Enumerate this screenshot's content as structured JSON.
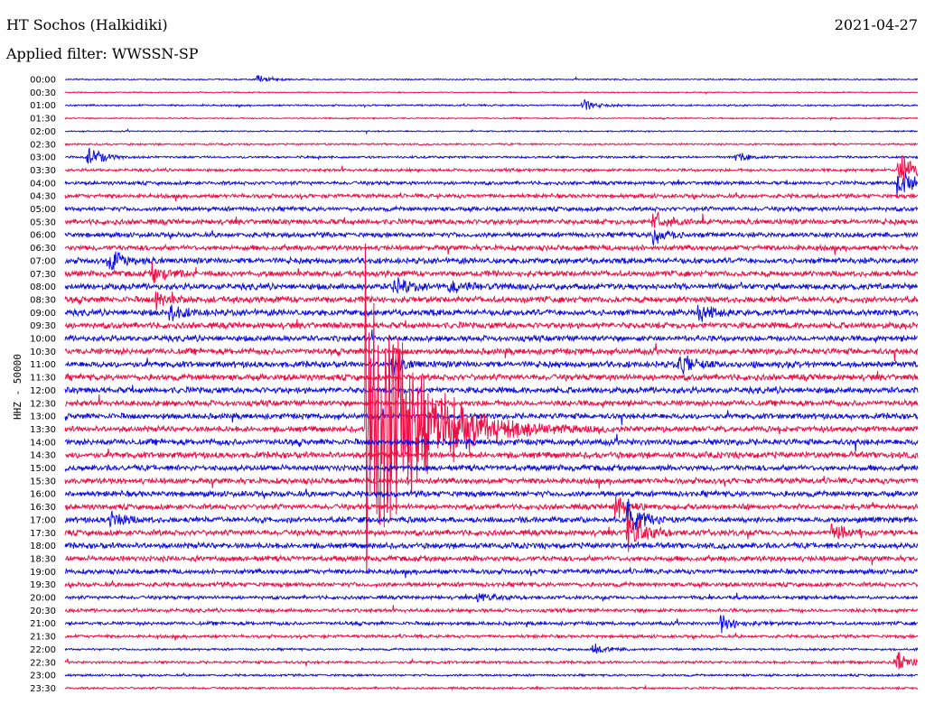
{
  "header": {
    "station": "HT Sochos (Halkidiki)",
    "date": "2021-04-27",
    "filter": "Applied filter: WWSSN-SP"
  },
  "channel_label": "HHZ - 50000",
  "colors": {
    "blue": "#1010e0",
    "red": "#ee1045",
    "background": "#ffffff"
  },
  "chart_data": {
    "type": "line",
    "title": "HT Sochos (Halkidiki)",
    "ylabel": "HHZ - 50000",
    "xlabel": "",
    "grid": false,
    "rows": [
      "00:00",
      "00:30",
      "01:00",
      "01:30",
      "02:00",
      "02:30",
      "03:00",
      "03:30",
      "04:00",
      "04:30",
      "05:00",
      "05:30",
      "06:00",
      "06:30",
      "07:00",
      "07:30",
      "08:00",
      "08:30",
      "09:00",
      "09:30",
      "10:00",
      "10:30",
      "11:00",
      "11:30",
      "12:00",
      "12:30",
      "13:00",
      "13:30",
      "14:00",
      "14:30",
      "15:00",
      "15:30",
      "16:00",
      "16:30",
      "17:00",
      "17:30",
      "18:00",
      "18:30",
      "19:00",
      "19:30",
      "20:00",
      "20:30",
      "21:00",
      "21:30",
      "22:00",
      "22:30",
      "23:00",
      "23:30"
    ],
    "row_colors": [
      "blue",
      "red"
    ],
    "row_noise": [
      0.6,
      0.5,
      0.8,
      0.6,
      0.6,
      0.8,
      1.0,
      1.3,
      1.6,
      1.8,
      2.0,
      2.4,
      2.2,
      2.4,
      2.6,
      2.6,
      2.8,
      2.8,
      2.8,
      2.8,
      2.6,
      2.8,
      2.8,
      2.8,
      2.8,
      2.6,
      2.6,
      2.6,
      2.8,
      2.8,
      2.6,
      2.6,
      2.6,
      2.4,
      2.6,
      2.6,
      2.6,
      2.4,
      2.2,
      2.0,
      1.6,
      1.6,
      1.6,
      1.4,
      1.0,
      1.2,
      1.0,
      1.0
    ],
    "events": [
      {
        "row": 0,
        "minute": 6.8,
        "amplitude": 4
      },
      {
        "row": 2,
        "minute": 18.2,
        "amplitude": 5
      },
      {
        "row": 6,
        "minute": 0.8,
        "amplitude": 12
      },
      {
        "row": 6,
        "minute": 23.6,
        "amplitude": 4
      },
      {
        "row": 7,
        "minute": 29.3,
        "amplitude": 18
      },
      {
        "row": 8,
        "minute": 29.3,
        "amplitude": 18
      },
      {
        "row": 11,
        "minute": 20.7,
        "amplitude": 8
      },
      {
        "row": 12,
        "minute": 20.7,
        "amplitude": 8
      },
      {
        "row": 14,
        "minute": 1.6,
        "amplitude": 12
      },
      {
        "row": 15,
        "minute": 3.1,
        "amplitude": 10
      },
      {
        "row": 16,
        "minute": 11.6,
        "amplitude": 8
      },
      {
        "row": 16,
        "minute": 13.5,
        "amplitude": 6
      },
      {
        "row": 17,
        "minute": 3.2,
        "amplitude": 8
      },
      {
        "row": 18,
        "minute": 3.7,
        "amplitude": 8
      },
      {
        "row": 18,
        "minute": 22.3,
        "amplitude": 12
      },
      {
        "row": 22,
        "minute": 11.5,
        "amplitude": 9
      },
      {
        "row": 22,
        "minute": 21.6,
        "amplitude": 11
      },
      {
        "row": 27,
        "minute": 10.6,
        "amplitude": 160
      },
      {
        "row": 33,
        "minute": 19.3,
        "amplitude": 14
      },
      {
        "row": 34,
        "minute": 1.6,
        "amplitude": 8
      },
      {
        "row": 34,
        "minute": 19.8,
        "amplitude": 20
      },
      {
        "row": 35,
        "minute": 19.8,
        "amplitude": 22
      },
      {
        "row": 35,
        "minute": 27.0,
        "amplitude": 10
      },
      {
        "row": 40,
        "minute": 14.5,
        "amplitude": 5
      },
      {
        "row": 42,
        "minute": 23.1,
        "amplitude": 8
      },
      {
        "row": 44,
        "minute": 18.6,
        "amplitude": 5
      },
      {
        "row": 45,
        "minute": 29.2,
        "amplitude": 12
      }
    ]
  }
}
